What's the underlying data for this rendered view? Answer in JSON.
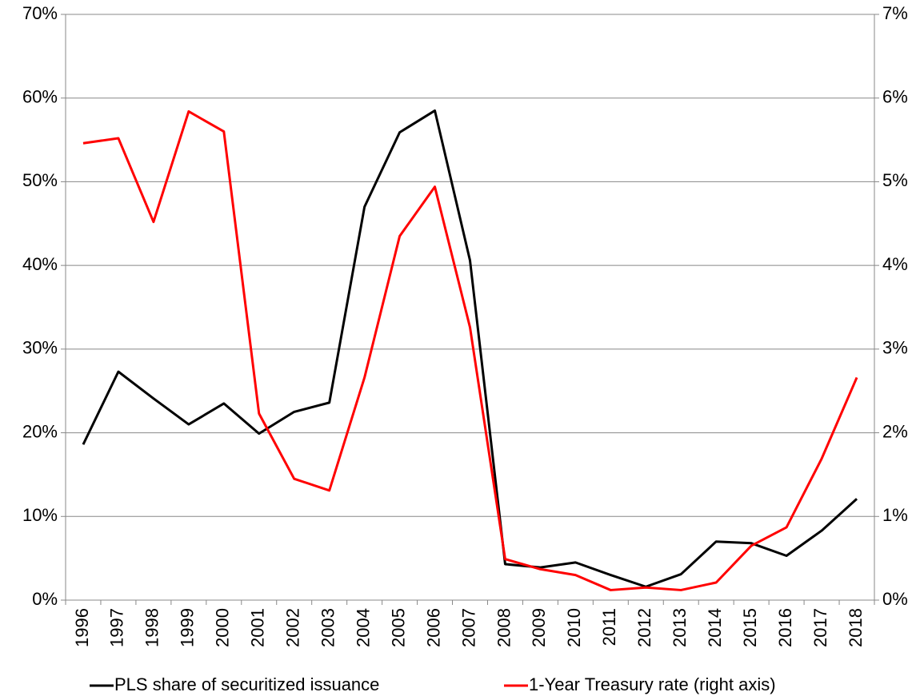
{
  "chart_data": {
    "type": "line",
    "categories": [
      "1996",
      "1997",
      "1998",
      "1999",
      "2000",
      "2001",
      "2002",
      "2003",
      "2004",
      "2005",
      "2006",
      "2007",
      "2008",
      "2009",
      "2010",
      "2011",
      "2012",
      "2013",
      "2014",
      "2015",
      "2016",
      "2017",
      "2018"
    ],
    "series": [
      {
        "name": "PLS share of securitized issuance",
        "color": "#000000",
        "values": [
          18.6,
          27.3,
          24.1,
          21.0,
          23.5,
          19.9,
          22.5,
          23.6,
          47.0,
          55.9,
          58.5,
          40.6,
          4.3,
          3.9,
          4.5,
          3.0,
          1.6,
          3.1,
          7.0,
          6.8,
          5.3,
          8.3,
          12.1
        ]
      },
      {
        "name": "1-Year Treasury rate (right axis)",
        "color": "#ff0000",
        "axis": "y2",
        "values": [
          5.46,
          5.52,
          4.52,
          5.84,
          5.6,
          2.23,
          1.45,
          1.31,
          2.66,
          4.35,
          4.94,
          3.26,
          0.49,
          0.37,
          0.3,
          0.12,
          0.15,
          0.12,
          0.21,
          0.65,
          0.87,
          1.69,
          2.66
        ]
      }
    ],
    "ylim": [
      0,
      70
    ],
    "yticks": [
      {
        "value": 0,
        "label": "0%"
      },
      {
        "value": 10,
        "label": "10%"
      },
      {
        "value": 20,
        "label": "20%"
      },
      {
        "value": 30,
        "label": "30%"
      },
      {
        "value": 40,
        "label": "40%"
      },
      {
        "value": 50,
        "label": "50%"
      },
      {
        "value": 60,
        "label": "60%"
      },
      {
        "value": 70,
        "label": "70%"
      }
    ],
    "y2lim": [
      0,
      7
    ],
    "y2ticks": [
      {
        "value": 0,
        "label": "0%"
      },
      {
        "value": 1,
        "label": "1%"
      },
      {
        "value": 2,
        "label": "2%"
      },
      {
        "value": 3,
        "label": "3%"
      },
      {
        "value": 4,
        "label": "4%"
      },
      {
        "value": 5,
        "label": "5%"
      },
      {
        "value": 6,
        "label": "6%"
      },
      {
        "value": 7,
        "label": "7%"
      }
    ],
    "grid": true
  }
}
